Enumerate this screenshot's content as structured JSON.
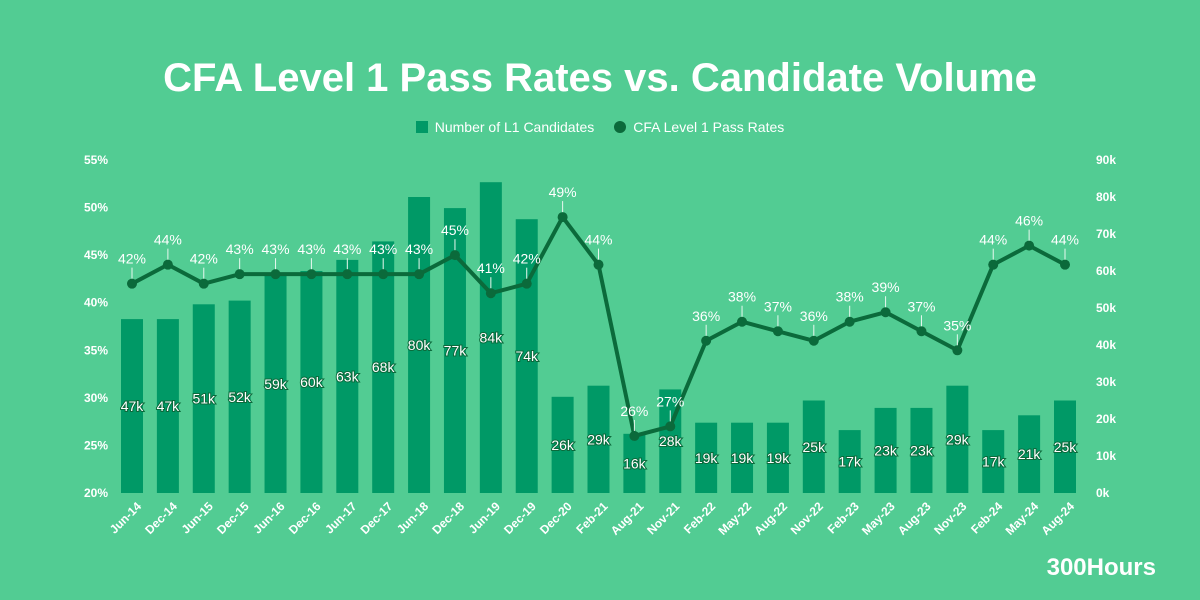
{
  "brand": "300Hours",
  "chart_data": {
    "type": "bar+line",
    "title": "CFA Level 1 Pass Rates vs. Candidate Volume",
    "legend_position": "top",
    "categories": [
      "Jun-14",
      "Dec-14",
      "Jun-15",
      "Dec-15",
      "Jun-16",
      "Dec-16",
      "Jun-17",
      "Dec-17",
      "Jun-18",
      "Dec-18",
      "Jun-19",
      "Dec-19",
      "Dec-20",
      "Feb-21",
      "Aug-21",
      "Nov-21",
      "Feb-22",
      "May-22",
      "Aug-22",
      "Nov-22",
      "Feb-23",
      "May-23",
      "Aug-23",
      "Nov-23",
      "Feb-24",
      "May-24",
      "Aug-24"
    ],
    "series": [
      {
        "name": "Number of L1 Candidates",
        "type": "bar",
        "axis": "right",
        "color": "#009966",
        "values": [
          47,
          47,
          51,
          52,
          59,
          60,
          63,
          68,
          80,
          77,
          84,
          74,
          26,
          29,
          16,
          28,
          19,
          19,
          19,
          25,
          17,
          23,
          23,
          29,
          17,
          21,
          25
        ],
        "unit": "k"
      },
      {
        "name": "CFA Level 1 Pass Rates",
        "type": "line",
        "axis": "left",
        "color": "#0b6a3b",
        "values": [
          42,
          44,
          42,
          43,
          43,
          43,
          43,
          43,
          43,
          45,
          41,
          42,
          49,
          44,
          26,
          27,
          36,
          38,
          37,
          36,
          38,
          39,
          37,
          35,
          44,
          46,
          44
        ],
        "unit": "%"
      }
    ],
    "left_axis": {
      "range": [
        20,
        55
      ],
      "ticks": [
        "20%",
        "25%",
        "30%",
        "35%",
        "40%",
        "45%",
        "50%",
        "55%"
      ]
    },
    "right_axis": {
      "range": [
        0,
        90
      ],
      "ticks": [
        "0k",
        "10k",
        "20k",
        "30k",
        "40k",
        "50k",
        "60k",
        "70k",
        "80k",
        "90k"
      ]
    },
    "grid": false
  }
}
